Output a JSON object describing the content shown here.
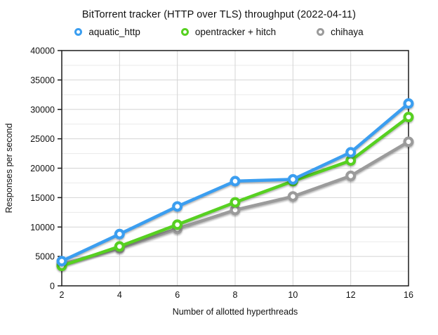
{
  "title": "BitTorrent tracker (HTTP over TLS) throughput (2022-04-11)",
  "chart_data": {
    "type": "line",
    "title": "BitTorrent tracker (HTTP over TLS) throughput (2022-04-11)",
    "xlabel": "Number of allotted hyperthreads",
    "ylabel": "Responses per second",
    "categories": [
      2,
      4,
      6,
      8,
      10,
      12,
      16
    ],
    "ylim": [
      0,
      40000
    ],
    "y_major_step": 5000,
    "y_minor_step": 2500,
    "grid": true,
    "legend_position": "top",
    "marker_style": "open-circle",
    "frame_color": "#1c1c1c",
    "major_grid_color": "#d4d4d4",
    "minor_grid_color": "#eaeaea",
    "text_color": "#111111",
    "series": [
      {
        "name": "aquatic_http",
        "color": "#3b9ef0",
        "values": [
          4200,
          8800,
          13500,
          17800,
          18100,
          22700,
          31000
        ]
      },
      {
        "name": "opentracker + hitch",
        "color": "#57d021",
        "values": [
          3400,
          6700,
          10400,
          14200,
          17800,
          21300,
          28700
        ]
      },
      {
        "name": "chihaya",
        "color": "#9b9b9b",
        "values": [
          3700,
          6400,
          9700,
          12900,
          15200,
          18700,
          24500
        ]
      }
    ]
  }
}
